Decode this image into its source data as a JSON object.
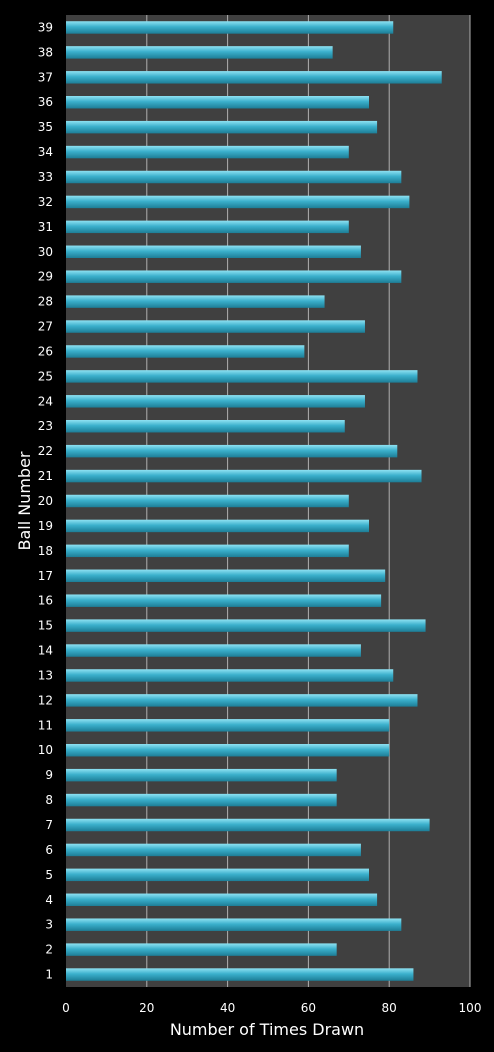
{
  "chart_data": {
    "type": "bar",
    "orientation": "horizontal",
    "xlabel": "Number of Times Drawn",
    "ylabel": "Ball Number",
    "xlim": [
      0,
      100
    ],
    "x_ticks": [
      0,
      20,
      40,
      60,
      80,
      100
    ],
    "grid": "vertical",
    "categories": [
      "1",
      "2",
      "3",
      "4",
      "5",
      "6",
      "7",
      "8",
      "9",
      "10",
      "11",
      "12",
      "13",
      "14",
      "15",
      "16",
      "17",
      "18",
      "19",
      "20",
      "21",
      "22",
      "23",
      "24",
      "25",
      "26",
      "27",
      "28",
      "29",
      "30",
      "31",
      "32",
      "33",
      "34",
      "35",
      "36",
      "37",
      "38",
      "39"
    ],
    "values": [
      86,
      67,
      83,
      77,
      75,
      73,
      90,
      67,
      67,
      80,
      80,
      87,
      81,
      73,
      89,
      78,
      79,
      70,
      75,
      70,
      88,
      82,
      69,
      74,
      87,
      59,
      74,
      64,
      83,
      73,
      70,
      85,
      83,
      70,
      77,
      75,
      93,
      66,
      81
    ],
    "colors": {
      "bar": "#3bb0cc",
      "bar_light": "#8fe2f2",
      "bar_dark": "#1d7d96",
      "plot_background": "#404040",
      "gridline": "#b0b0b0",
      "background": "#000000"
    }
  }
}
